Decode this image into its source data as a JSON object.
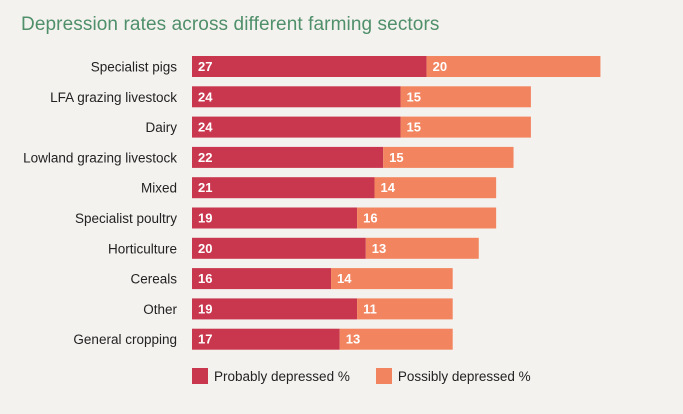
{
  "title": "Depression rates across different farming sectors",
  "colors": {
    "probably": "#c9374f",
    "possibly": "#f2855f"
  },
  "legend": {
    "probably": "Probably depressed %",
    "possibly": "Possibly depressed %"
  },
  "chart_data": {
    "type": "bar",
    "orientation": "horizontal",
    "stacked": true,
    "title": "Depression rates across different farming sectors",
    "categories": [
      "Specialist pigs",
      "LFA grazing livestock",
      "Dairy",
      "Lowland grazing livestock",
      "Mixed",
      "Specialist poultry",
      "Horticulture",
      "Cereals",
      "Other",
      "General cropping"
    ],
    "series": [
      {
        "name": "Probably depressed %",
        "values": [
          27,
          24,
          24,
          22,
          21,
          19,
          20,
          16,
          19,
          17
        ]
      },
      {
        "name": "Possibly depressed %",
        "values": [
          20,
          15,
          15,
          15,
          14,
          16,
          13,
          14,
          11,
          13
        ]
      }
    ]
  }
}
